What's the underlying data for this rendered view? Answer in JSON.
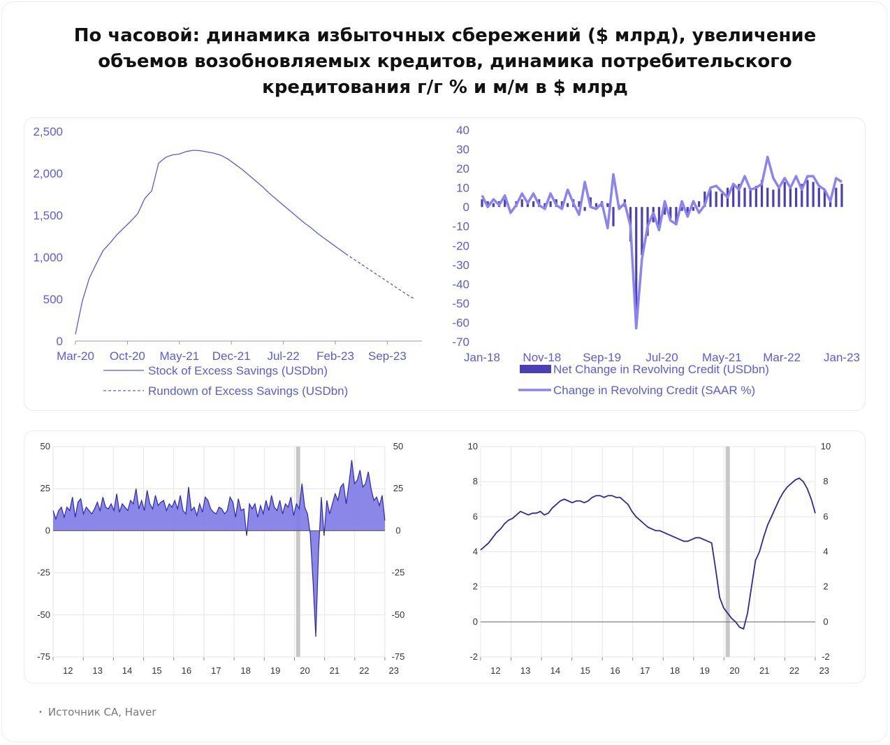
{
  "title": "По часовой: динамика избыточных сбережений ($ млрд), увеличение объемов возобновляемых кредитов, динамика потребительского кредитования г/г % и м/м в $ млрд",
  "source": "Источник CA, Haver",
  "colors": {
    "primary": "#5b5bd6",
    "light": "#8b84f0",
    "dark": "#4a3fb5",
    "fill": "#7d7ae6",
    "recession": "#c8c8c8"
  },
  "chart_data": [
    {
      "type": "line",
      "x_tick_labels": [
        "Mar-20",
        "Oct-20",
        "May-21",
        "Dec-21",
        "Jul-22",
        "Feb-23",
        "Sep-23"
      ],
      "y_tick_labels": [
        "0",
        "500",
        "1,000",
        "1,500",
        "2,000",
        "2,500"
      ],
      "ylim": [
        0,
        2500
      ],
      "series": [
        {
          "name": "Stock of Excess Savings (USDbn)",
          "style": "solid",
          "values": [
            80,
            480,
            750,
            920,
            1080,
            1170,
            1270,
            1350,
            1430,
            1520,
            1700,
            1790,
            2120,
            2190,
            2220,
            2230,
            2260,
            2275,
            2270,
            2255,
            2240,
            2215,
            2170,
            2110,
            2050,
            1980,
            1910,
            1840,
            1760,
            1690,
            1620,
            1550,
            1480,
            1410,
            1350,
            1280,
            1220,
            1160,
            1100,
            1040
          ]
        },
        {
          "name": "Rundown of Excess Savings (USDbn)",
          "style": "dashed",
          "start_index": 39,
          "values": [
            1040,
            985,
            930,
            875,
            820,
            765,
            710,
            655,
            600,
            545,
            500
          ]
        }
      ]
    },
    {
      "type": "bar",
      "x_tick_labels": [
        "Jan-18",
        "Nov-18",
        "Sep-19",
        "Jul-20",
        "May-21",
        "Mar-22",
        "Jan-23"
      ],
      "y_tick_labels": [
        "40",
        "30",
        "20",
        "10",
        "0",
        "-10",
        "-20",
        "-30",
        "-40",
        "-50",
        "-60",
        "-70"
      ],
      "ylim": [
        -70,
        40
      ],
      "series": [
        {
          "name": "Net Change in Revolving Credit (USDbn)",
          "style": "bar",
          "values": [
            4,
            3,
            2,
            3,
            4,
            0,
            3,
            4,
            2,
            3,
            4,
            2,
            3,
            4,
            3,
            2,
            4,
            3,
            -2,
            5,
            2,
            3,
            2,
            -10,
            1,
            4,
            -18,
            -62,
            -25,
            -15,
            -8,
            -12,
            -4,
            -6,
            -8,
            -2,
            -4,
            -2,
            3,
            8,
            9,
            8,
            7,
            10,
            11,
            12,
            10,
            9,
            11,
            14,
            10,
            9,
            11,
            13,
            11,
            10,
            12,
            14,
            13,
            10,
            9,
            5,
            10,
            12
          ]
        },
        {
          "name": "Change in Revolving Credit (SAAR %)",
          "style": "line",
          "values": [
            6,
            0,
            4,
            1,
            6,
            -3,
            1,
            7,
            2,
            7,
            1,
            -1,
            7,
            1,
            -1,
            9,
            2,
            -4,
            13,
            0,
            -1,
            2,
            -11,
            17,
            -1,
            2,
            -10,
            -63,
            -27,
            -10,
            -3,
            -12,
            3,
            -7,
            -9,
            3,
            -5,
            3,
            -3,
            1,
            10,
            11,
            8,
            5,
            12,
            9,
            16,
            9,
            10,
            12,
            26,
            15,
            10,
            15,
            10,
            16,
            9,
            16,
            16,
            11,
            9,
            3,
            15,
            13
          ]
        }
      ]
    },
    {
      "type": "area",
      "x_tick_labels": [
        "12",
        "13",
        "14",
        "15",
        "16",
        "17",
        "18",
        "19",
        "20",
        "21",
        "22",
        "23"
      ],
      "y_tick_labels": [
        "50",
        "25",
        "0",
        "-25",
        "-50",
        "-75"
      ],
      "y_tick_labels_right": [
        "50",
        "25",
        "0",
        "-25",
        "-50",
        "-75"
      ],
      "ylim": [
        -75,
        50
      ],
      "recession_at": "20",
      "values": [
        12,
        7,
        12,
        14,
        8,
        14,
        12,
        20,
        8,
        17,
        19,
        10,
        14,
        12,
        10,
        13,
        17,
        12,
        20,
        14,
        13,
        16,
        12,
        22,
        11,
        16,
        14,
        12,
        18,
        16,
        25,
        13,
        18,
        12,
        24,
        16,
        13,
        21,
        15,
        17,
        18,
        12,
        16,
        14,
        18,
        13,
        21,
        12,
        10,
        26,
        12,
        14,
        9,
        16,
        11,
        20,
        18,
        13,
        11,
        10,
        14,
        13,
        10,
        12,
        20,
        17,
        8,
        19,
        12,
        13,
        -3,
        16,
        13,
        16,
        8,
        15,
        10,
        18,
        12,
        21,
        14,
        12,
        18,
        10,
        16,
        14,
        20,
        9,
        16,
        13,
        28,
        14,
        10,
        -2,
        -30,
        -63,
        -12,
        20,
        -3,
        18,
        10,
        16,
        22,
        18,
        26,
        28,
        16,
        28,
        42,
        28,
        30,
        36,
        26,
        28,
        35,
        25,
        18,
        20,
        15,
        21,
        6
      ]
    },
    {
      "type": "line",
      "x_tick_labels": [
        "12",
        "13",
        "14",
        "15",
        "16",
        "17",
        "18",
        "19",
        "20",
        "21",
        "22",
        "23"
      ],
      "y_tick_labels": [
        "10",
        "8",
        "6",
        "4",
        "2",
        "0",
        "-2"
      ],
      "y_tick_labels_right": [
        "10",
        "8",
        "6",
        "4",
        "2",
        "0",
        "-2"
      ],
      "ylim": [
        -2,
        10
      ],
      "recession_at": "20",
      "values": [
        4.1,
        4.3,
        4.5,
        4.8,
        5.1,
        5.3,
        5.6,
        5.8,
        5.9,
        6.1,
        6.3,
        6.2,
        6.1,
        6.2,
        6.2,
        6.3,
        6.1,
        6.2,
        6.5,
        6.7,
        6.9,
        7.0,
        6.9,
        6.8,
        6.9,
        6.9,
        6.8,
        6.9,
        7.1,
        7.2,
        7.2,
        7.1,
        7.2,
        7.2,
        7.1,
        7.1,
        6.9,
        6.7,
        6.3,
        6.0,
        5.8,
        5.6,
        5.4,
        5.3,
        5.2,
        5.2,
        5.1,
        5.0,
        4.9,
        4.8,
        4.7,
        4.6,
        4.6,
        4.7,
        4.8,
        4.8,
        4.7,
        4.6,
        4.5,
        3.0,
        1.4,
        0.8,
        0.5,
        0.2,
        0.0,
        -0.3,
        -0.4,
        0.5,
        2.0,
        3.5,
        4.0,
        4.8,
        5.5,
        6.0,
        6.5,
        7.0,
        7.4,
        7.7,
        7.9,
        8.1,
        8.2,
        8.0,
        7.6,
        7.0,
        6.2
      ]
    }
  ]
}
